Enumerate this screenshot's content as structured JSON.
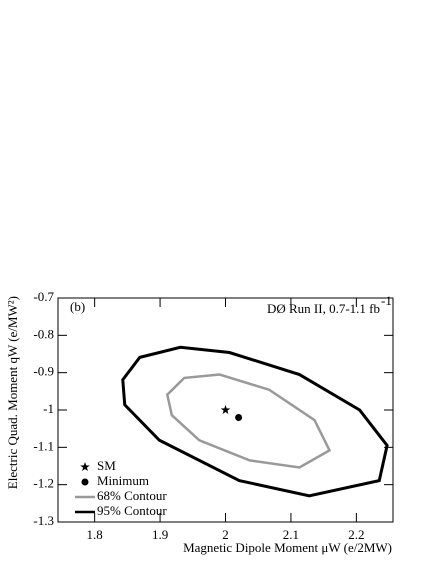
{
  "chart_data": {
    "type": "contour",
    "panel_label": "(b)",
    "annotation": "DØ Run II, 0.7-1.1 fb",
    "annotation_sup": "-1",
    "xlabel": "Magnetic Dipole Moment μW (e/2MW)",
    "ylabel": "Electric Quad. Moment qW (e/MW²)",
    "xlim": [
      1.744,
      2.256
    ],
    "ylim": [
      -1.3,
      -0.7
    ],
    "xticks": [
      1.8,
      1.9,
      2,
      2.1,
      2.2
    ],
    "yticks": [
      -0.7,
      -0.8,
      -0.9,
      -1,
      -1.1,
      -1.2,
      -1.3
    ],
    "series": [
      {
        "name": "68% Contour",
        "color": "#999999",
        "x": [
          1.911,
          1.937,
          1.991,
          2.067,
          2.136,
          2.159,
          2.113,
          2.037,
          1.96,
          1.918
        ],
        "values": [
          -0.959,
          -0.914,
          -0.905,
          -0.946,
          -1.027,
          -1.108,
          -1.154,
          -1.135,
          -1.081,
          -1.014
        ]
      },
      {
        "name": "95% Contour",
        "color": "#000000",
        "x": [
          1.843,
          1.869,
          1.931,
          2.006,
          2.113,
          2.205,
          2.247,
          2.235,
          2.128,
          2.021,
          1.899,
          1.846
        ],
        "values": [
          -0.919,
          -0.859,
          -0.832,
          -0.846,
          -0.905,
          -1.0,
          -1.095,
          -1.189,
          -1.23,
          -1.189,
          -1.081,
          -0.986
        ]
      }
    ],
    "points": [
      {
        "name": "SM",
        "marker": "star",
        "x": 2,
        "y": -1
      },
      {
        "name": "Minimum",
        "marker": "circle",
        "x": 2.02,
        "y": -1.02
      }
    ]
  }
}
